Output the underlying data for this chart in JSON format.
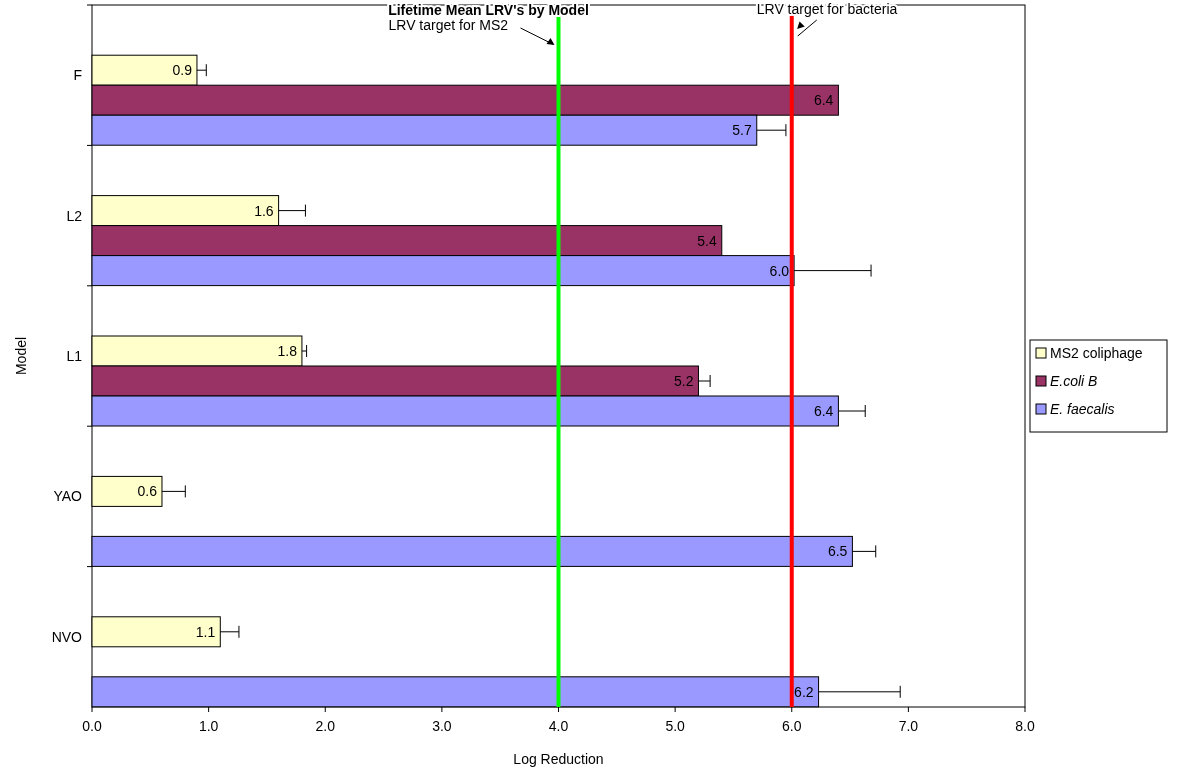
{
  "chart_data": {
    "type": "bar",
    "orientation": "horizontal",
    "title": "Lifetime Mean LRV's by Model",
    "xlabel": "Log Reduction",
    "ylabel": "Model",
    "categories": [
      "F",
      "L2",
      "L1",
      "YAO",
      "NVO"
    ],
    "series": [
      {
        "name": "MS2 coliphage",
        "color": "#ffffcc",
        "values": [
          0.9,
          1.6,
          1.8,
          0.6,
          1.1
        ],
        "value_labels": [
          "0.9",
          "1.6",
          "1.8",
          "0.6",
          "1.1"
        ],
        "errors": [
          [
            0.9,
            0.98
          ],
          [
            1.6,
            1.83
          ],
          [
            1.8,
            1.84
          ],
          [
            0.6,
            0.8
          ],
          [
            1.1,
            1.26
          ]
        ]
      },
      {
        "name": "E.coli B",
        "color": "#993366",
        "values": [
          6.4,
          5.4,
          5.2,
          null,
          null
        ],
        "value_labels": [
          "6.4",
          "5.4",
          "5.2",
          null,
          null
        ],
        "errors": [
          null,
          null,
          [
            5.2,
            5.3
          ],
          null,
          null
        ]
      },
      {
        "name": "E. faecalis",
        "color": "#9999ff",
        "values": [
          5.7,
          6.02,
          6.4,
          6.52,
          6.23
        ],
        "value_labels": [
          "5.7",
          "6.0",
          "6.4",
          "6.5",
          "6.2"
        ],
        "errors": [
          [
            5.7,
            5.95
          ],
          [
            6.02,
            6.68
          ],
          [
            6.4,
            6.63
          ],
          [
            6.52,
            6.72
          ],
          [
            6.23,
            6.93
          ]
        ]
      }
    ],
    "xlim": [
      0,
      8
    ],
    "xticks": [
      {
        "value": 0,
        "label": "0.0"
      },
      {
        "value": 1,
        "label": "1.0"
      },
      {
        "value": 2,
        "label": "2.0"
      },
      {
        "value": 3,
        "label": "3.0"
      },
      {
        "value": 4,
        "label": "4.0"
      },
      {
        "value": 5,
        "label": "5.0"
      },
      {
        "value": 6,
        "label": "6.0"
      },
      {
        "value": 7,
        "label": "7.0"
      },
      {
        "value": 8,
        "label": "8.0"
      }
    ],
    "ref_lines": [
      {
        "axis": "x",
        "value": 4,
        "label": "LRV target for MS2",
        "color": "#00ff00"
      },
      {
        "axis": "x",
        "value": 6,
        "label": "LRV target for bacteria",
        "color": "#ff0000"
      }
    ],
    "legend": "right",
    "grid": false
  }
}
